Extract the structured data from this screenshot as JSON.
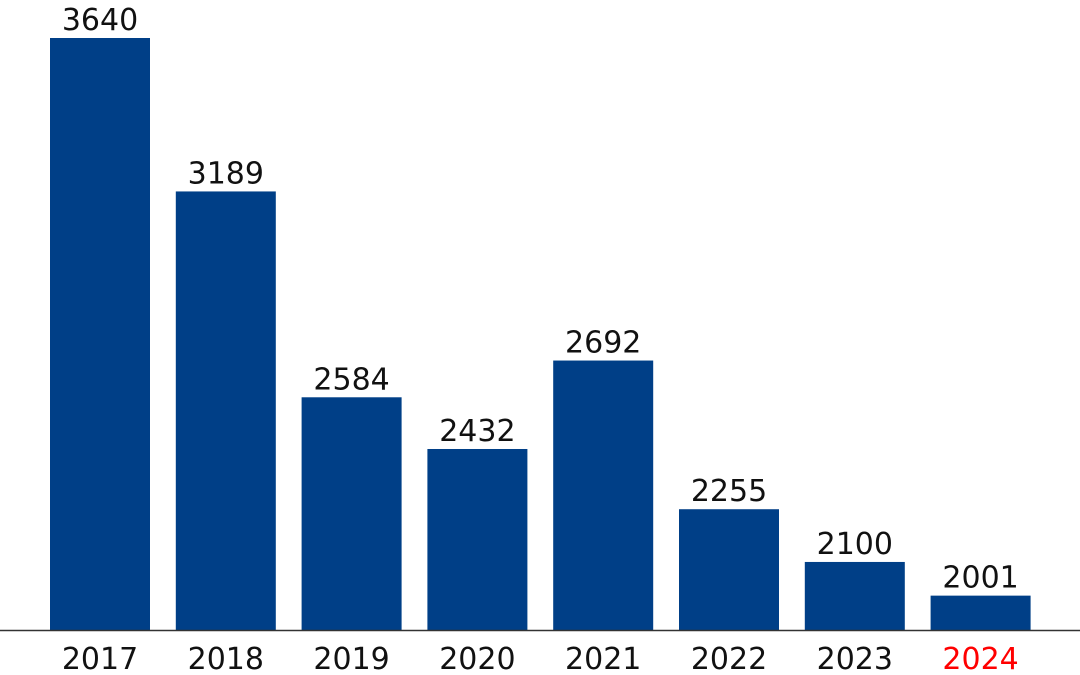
{
  "chart_data": {
    "type": "bar",
    "title": "",
    "xlabel": "",
    "ylabel": "",
    "categories": [
      "2017",
      "2018",
      "2019",
      "2020",
      "2021",
      "2022",
      "2023",
      "2024"
    ],
    "values": [
      3640,
      3189,
      2584,
      2432,
      2692,
      2255,
      2100,
      2001
    ],
    "data_labels": [
      "3640",
      "3189",
      "2584",
      "2432",
      "2692",
      "2255",
      "2100",
      "2001"
    ],
    "ylim": [
      1900,
      3640
    ],
    "grid": false,
    "legend": "none",
    "axes": "x-axis baseline only, no y-axis ticks",
    "colors": {
      "bar": "#003F87",
      "tick_label": "#111111",
      "highlight_tick_label": "#FF0000",
      "axis_line": "#333333"
    },
    "highlighted_category": "2024"
  }
}
